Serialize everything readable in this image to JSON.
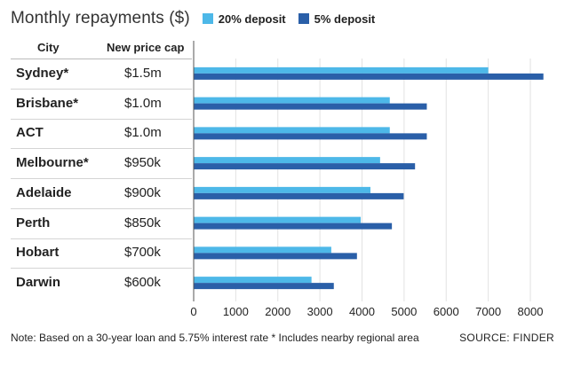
{
  "chart_data": {
    "type": "bar",
    "orientation": "horizontal",
    "title": "Monthly repayments ($)",
    "table_headers": {
      "city": "City",
      "cap": "New price cap"
    },
    "categories": [
      "Sydney*",
      "Brisbane*",
      "ACT",
      "Melbourne*",
      "Adelaide",
      "Perth",
      "Hobart",
      "Darwin"
    ],
    "price_caps": [
      "$1.5m",
      "$1.0m",
      "$1.0m",
      "$950k",
      "$900k",
      "$850k",
      "$700k",
      "$600k"
    ],
    "series": [
      {
        "name": "20% deposit",
        "color": "#4db8e8",
        "values": [
          7000,
          4660,
          4660,
          4430,
          4200,
          3970,
          3270,
          2800
        ]
      },
      {
        "name": "5% deposit",
        "color": "#2a5fa8",
        "values": [
          8310,
          5540,
          5540,
          5260,
          4990,
          4710,
          3880,
          3330
        ]
      }
    ],
    "xlim": [
      0,
      8000
    ],
    "x_ticks": [
      0,
      1000,
      2000,
      3000,
      4000,
      5000,
      6000,
      7000,
      8000
    ],
    "grid": true,
    "legend": "top"
  },
  "footnote": "Note: Based on a 30-year loan and 5.75% interest rate  * Includes nearby regional area",
  "source": "SOURCE: FINDER"
}
